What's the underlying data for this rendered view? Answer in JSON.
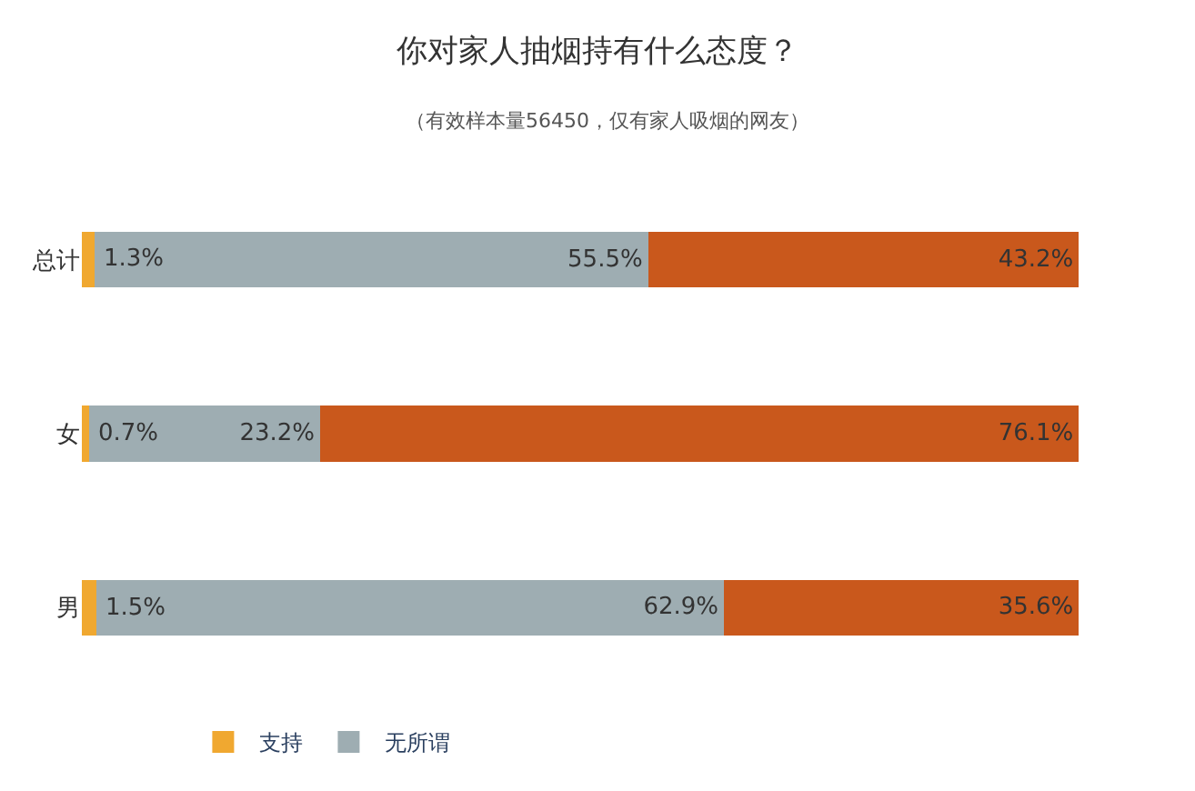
{
  "chart_data": {
    "type": "bar",
    "orientation": "horizontal",
    "stacked": true,
    "title": "你对家人抽烟持有什么态度？",
    "subtitle": "（有效样本量56450，仅有家人吸烟的网友）",
    "categories": [
      "总计",
      "女",
      "男"
    ],
    "series": [
      {
        "name": "支持",
        "color": "#f0a830",
        "values": [
          1.3,
          0.7,
          1.5
        ],
        "value_labels": [
          "1.3%",
          "0.7%",
          "1.5%"
        ]
      },
      {
        "name": "无所谓",
        "color": "#9eadb2",
        "values": [
          55.5,
          23.2,
          62.9
        ],
        "value_labels": [
          "55.5%",
          "23.2%",
          "62.9%"
        ]
      },
      {
        "color": "#c9581c",
        "values": [
          43.2,
          76.1,
          35.6
        ],
        "value_labels": [
          "43.2%",
          "76.1%",
          "35.6%"
        ]
      }
    ],
    "legend": "bottom left",
    "tick_labels": "y"
  }
}
